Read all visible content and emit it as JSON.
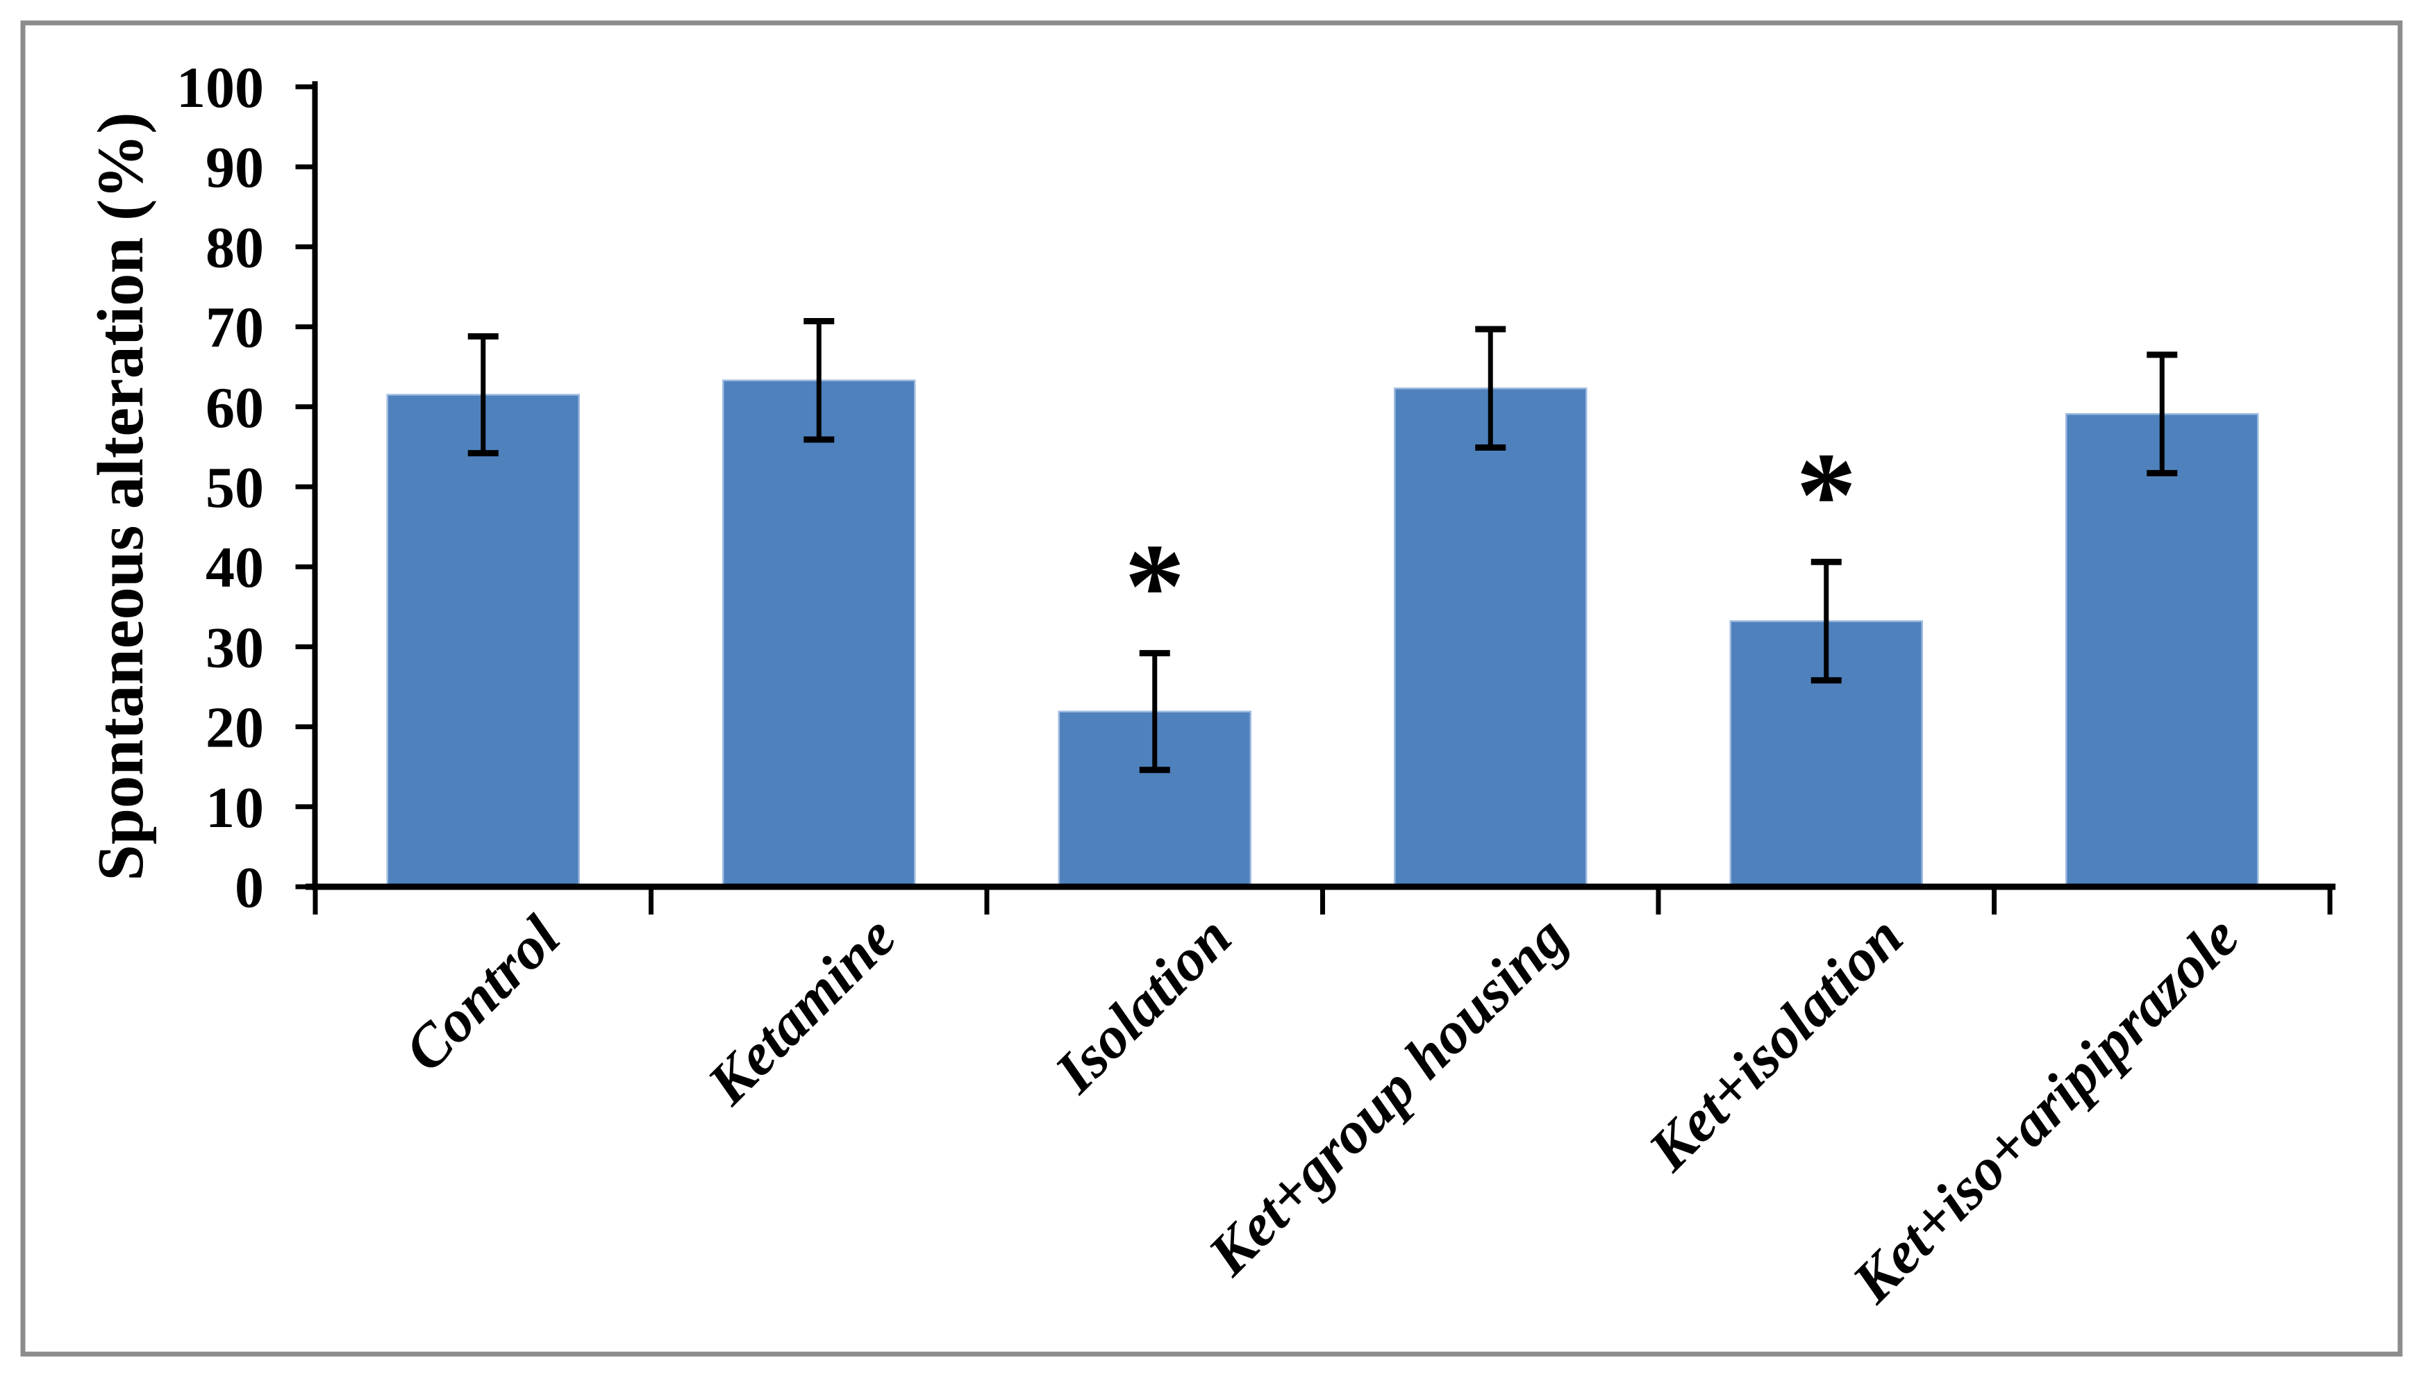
{
  "figure": {
    "background_color": "#ffffff",
    "border_color": "#8c8c8c",
    "axis_color": "#000000",
    "text_color": "#000000"
  },
  "chart_data": {
    "type": "bar",
    "title": "",
    "xlabel": "",
    "ylabel": "Spontaneous alteration (%)",
    "categories": [
      "Control",
      "Ketamine",
      "Isolation",
      "Ket+group housing",
      "Ket+isolation",
      "Ket+iso+aripiprazole"
    ],
    "values": [
      61.5,
      63.3,
      21.9,
      62.3,
      33.2,
      59.1
    ],
    "error_bars": [
      7.3,
      7.4,
      7.3,
      7.4,
      7.4,
      7.4
    ],
    "significance": [
      "",
      "",
      "*",
      "",
      "*",
      ""
    ],
    "yticks": [
      0,
      10,
      20,
      30,
      40,
      50,
      60,
      70,
      80,
      90,
      100
    ],
    "ylim": [
      0,
      100
    ],
    "grid": false,
    "legend_position": "none",
    "bar_color": "#4f81bd",
    "bar_edge_color": "#9fbbde",
    "error_bar_color": "#000000",
    "significance_color": "#000000"
  }
}
